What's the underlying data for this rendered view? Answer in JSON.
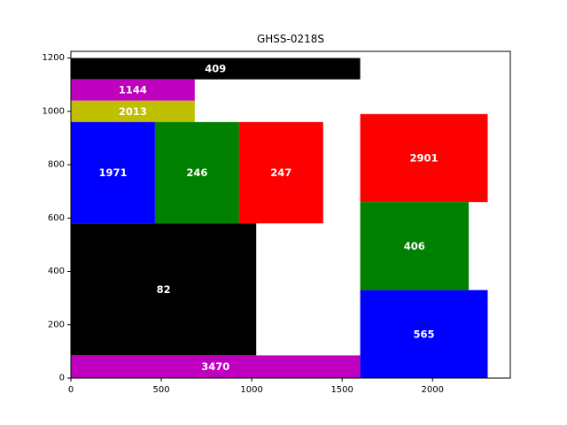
{
  "chart_data": {
    "type": "bar",
    "subtype": "rectangle-packing",
    "title": "GHSS-0218S",
    "xlabel": "",
    "ylabel": "",
    "xlim": [
      0,
      2430
    ],
    "ylim": [
      0,
      1225
    ],
    "xticks": [
      0,
      500,
      1000,
      1500,
      2000
    ],
    "yticks": [
      0,
      200,
      400,
      600,
      800,
      1000,
      1200
    ],
    "grid": false,
    "legend": "none",
    "rects": [
      {
        "label": "409",
        "x": 0,
        "y": 1120,
        "w": 1600,
        "h": 80,
        "color": "#000000"
      },
      {
        "label": "1144",
        "x": 0,
        "y": 1040,
        "w": 685,
        "h": 80,
        "color": "#bf00bf"
      },
      {
        "label": "2013",
        "x": 0,
        "y": 960,
        "w": 685,
        "h": 80,
        "color": "#bfbf00"
      },
      {
        "label": "1971",
        "x": 0,
        "y": 580,
        "w": 465,
        "h": 380,
        "color": "#0000ff"
      },
      {
        "label": "246",
        "x": 465,
        "y": 580,
        "w": 465,
        "h": 380,
        "color": "#008000"
      },
      {
        "label": "247",
        "x": 930,
        "y": 580,
        "w": 465,
        "h": 380,
        "color": "#ff0000"
      },
      {
        "label": "82",
        "x": 0,
        "y": 85,
        "w": 1025,
        "h": 495,
        "color": "#000000"
      },
      {
        "label": "3470",
        "x": 0,
        "y": 0,
        "w": 1600,
        "h": 85,
        "color": "#bf00bf"
      },
      {
        "label": "2901",
        "x": 1600,
        "y": 660,
        "w": 705,
        "h": 330,
        "color": "#ff0000"
      },
      {
        "label": "406",
        "x": 1600,
        "y": 330,
        "w": 600,
        "h": 330,
        "color": "#008000"
      },
      {
        "label": "565",
        "x": 1600,
        "y": 0,
        "w": 705,
        "h": 330,
        "color": "#0000ff"
      }
    ]
  }
}
